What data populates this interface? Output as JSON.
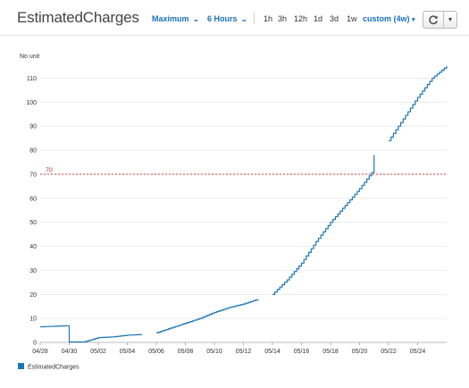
{
  "header": {
    "title": "EstimatedCharges",
    "statistic": "Maximum",
    "period": "6 Hours",
    "ranges": [
      "1h",
      "3h",
      "12h",
      "1d",
      "3d",
      "1w"
    ],
    "custom_range": "custom (4w)"
  },
  "icons": {
    "refresh": "refresh-icon",
    "dropdown": "caret-down-icon"
  },
  "colors": {
    "series": "#1f77b4",
    "threshold": "#d62728",
    "accent": "#1a6fbe"
  },
  "chart_data": {
    "type": "line",
    "ylabel": "No unit",
    "ylim": [
      0,
      115
    ],
    "yticks": [
      0,
      10,
      20,
      30,
      40,
      50,
      60,
      70,
      80,
      90,
      100,
      110
    ],
    "xlim": [
      "2018-04-28",
      "2018-05-26"
    ],
    "xticks": [
      "04/28",
      "04/30",
      "05/02",
      "05/04",
      "05/06",
      "05/08",
      "05/10",
      "05/12",
      "05/14",
      "05/16",
      "05/18",
      "05/20",
      "05/22",
      "05/24"
    ],
    "threshold": {
      "value": 70,
      "label": "70"
    },
    "legend": {
      "position": "bottom-left"
    },
    "series": [
      {
        "name": "EstimatedCharges",
        "segments": [
          [
            [
              "2018-04-28",
              6.5
            ],
            [
              "2018-04-30",
              7
            ],
            [
              "2018-04-30",
              0.2
            ],
            [
              "2018-05-01",
              0.2
            ],
            [
              "2018-05-02",
              2
            ],
            [
              "2018-05-03",
              2.3
            ],
            [
              "2018-05-04",
              3
            ],
            [
              "2018-05-05",
              3.3
            ]
          ],
          [
            [
              "2018-05-06",
              4
            ],
            [
              "2018-05-07",
              6
            ],
            [
              "2018-05-08",
              8
            ],
            [
              "2018-05-09",
              10
            ],
            [
              "2018-05-10",
              12.5
            ],
            [
              "2018-05-11",
              14.5
            ],
            [
              "2018-05-12",
              16
            ],
            [
              "2018-05-13",
              18
            ]
          ],
          [
            [
              "2018-05-14",
              20
            ],
            [
              "2018-05-15",
              26
            ],
            [
              "2018-05-16",
              33
            ],
            [
              "2018-05-17",
              42
            ],
            [
              "2018-05-18",
              50
            ],
            [
              "2018-05-19",
              57
            ],
            [
              "2018-05-20",
              64
            ],
            [
              "2018-05-21",
              72
            ],
            [
              "2018-05-21",
              78
            ]
          ],
          [
            [
              "2018-05-22",
              84
            ],
            [
              "2018-05-23",
              93
            ],
            [
              "2018-05-24",
              102
            ],
            [
              "2018-05-25",
              110
            ],
            [
              "2018-05-26",
              115
            ]
          ]
        ]
      }
    ]
  }
}
